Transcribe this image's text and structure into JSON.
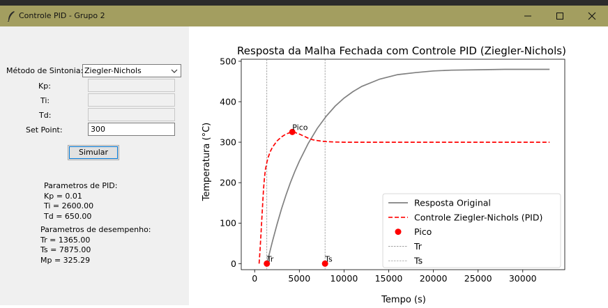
{
  "window": {
    "title": "Controle PID - Grupo 2"
  },
  "form": {
    "method_label": "Método de Sintonia:",
    "method_value": "Ziegler-Nichols",
    "kp_label": "Kp:",
    "kp_value": "",
    "ti_label": "Ti:",
    "ti_value": "",
    "td_label": "Td:",
    "td_value": "",
    "setpoint_label": "Set Point:",
    "setpoint_value": "300",
    "simulate_label": "Simular"
  },
  "results": {
    "pid_header": "Parametros de PID:",
    "kp": "Kp = 0.01",
    "ti": "Ti = 2600.00",
    "td": "Td = 650.00",
    "perf_header": "Parametros de desempenho:",
    "tr": "Tr = 1365.00",
    "ts": "Ts = 7875.00",
    "mp": "Mp = 325.29"
  },
  "chart_data": {
    "type": "line",
    "title": "Resposta da Malha Fechada com Controle PID (Ziegler-Nichols)",
    "xlabel": "Tempo (s)",
    "ylabel": "Temperatura (°C)",
    "xlim": [
      -1500,
      34700
    ],
    "ylim": [
      -15,
      505
    ],
    "xticks": [
      0,
      5000,
      10000,
      15000,
      20000,
      25000,
      30000
    ],
    "yticks": [
      0,
      100,
      200,
      300,
      400,
      500
    ],
    "grid": false,
    "legend_position": "lower right",
    "series": [
      {
        "name": "Resposta Original",
        "color": "#808080",
        "style": "solid",
        "x": [
          1365,
          2000,
          2500,
          3000,
          3500,
          4000,
          4500,
          5000,
          6000,
          7000,
          8000,
          9000,
          10000,
          11000,
          12000,
          14000,
          16000,
          18000,
          20000,
          22000,
          25000,
          28000,
          31000,
          33000
        ],
        "y": [
          0,
          56,
          97,
          135,
          169,
          200,
          228,
          253,
          297,
          334,
          364,
          389,
          409,
          425,
          438,
          456,
          467,
          472,
          476,
          478,
          479,
          480,
          480,
          480
        ]
      },
      {
        "name": "Controle Ziegler-Nichols (PID)",
        "color": "#ff0000",
        "style": "dashed",
        "x": [
          500,
          600,
          700,
          800,
          900,
          1000,
          1100,
          1200,
          1365,
          1500,
          1750,
          2000,
          2500,
          3000,
          3500,
          4000,
          4215,
          4500,
          5000,
          5500,
          6000,
          6500,
          7000,
          7500,
          8000,
          9000,
          10000,
          12000,
          15000,
          20000,
          25000,
          30000,
          33000
        ],
        "y": [
          0,
          32,
          70,
          110,
          150,
          185,
          212,
          232,
          250,
          262,
          277,
          288,
          303,
          313,
          320,
          324,
          325.3,
          324,
          320,
          315,
          310,
          306,
          304,
          302.5,
          301.5,
          300.5,
          300,
          300,
          300,
          300,
          300,
          300,
          300
        ]
      },
      {
        "name": "Pico",
        "color": "#ff0000",
        "style": "marker",
        "x": [
          4215
        ],
        "y": [
          325.29
        ]
      },
      {
        "name": "Tr",
        "color": "#808080",
        "style": "vline",
        "x": [
          1365
        ]
      },
      {
        "name": "Ts",
        "color": "#808080",
        "style": "vline",
        "x": [
          7875
        ]
      }
    ],
    "points": [
      {
        "label": "Pico",
        "x": 4215,
        "y": 325.29
      },
      {
        "label": "Tr",
        "x": 1365,
        "y": 0
      },
      {
        "label": "Ts",
        "x": 7875,
        "y": 0
      }
    ],
    "legend": [
      "Resposta Original",
      "Controle Ziegler-Nichols (PID)",
      "Pico",
      "Tr",
      "Ts"
    ]
  }
}
